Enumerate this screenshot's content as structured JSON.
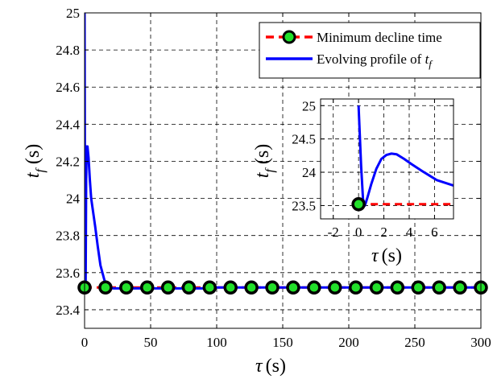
{
  "chart_data": [
    {
      "type": "line",
      "xlabel_symbol": "τ",
      "xlabel_unit": "(s)",
      "ylabel_symbol": "t",
      "ylabel_subscript": "f",
      "ylabel_unit": "(s)",
      "xlim": [
        0,
        300
      ],
      "ylim": [
        23.3,
        25
      ],
      "xticks": [
        0,
        50,
        100,
        150,
        200,
        250,
        300
      ],
      "yticks": [
        23.4,
        23.6,
        23.8,
        24,
        24.2,
        24.4,
        24.6,
        24.8,
        25
      ],
      "grid": true,
      "legend_position": "top-right",
      "legend": {
        "entry1": "Minimum decline time",
        "entry2_prefix": "Evolving profile of ",
        "entry2_symbol": "t",
        "entry2_subscript": "f"
      },
      "series": [
        {
          "name": "Minimum decline time",
          "style": "dashed",
          "color": "#ff0000",
          "marker_face": "#22e02a",
          "marker_edge": "#000000",
          "x": [
            0,
            300
          ],
          "y": [
            23.52,
            23.52
          ],
          "marker_x": [
            0,
            15.8,
            31.6,
            47.4,
            63.2,
            78.9,
            94.7,
            110.5,
            126.3,
            142.1,
            157.9,
            173.7,
            189.5,
            205.3,
            221.1,
            236.8,
            252.6,
            268.4,
            284.2,
            300
          ]
        },
        {
          "name": "Evolving profile of t_f",
          "style": "solid",
          "color": "#0000ff",
          "x": [
            0,
            0.4,
            0.8,
            1.2,
            1.6,
            2.2,
            3,
            4,
            5,
            6,
            8,
            10,
            12,
            15,
            18,
            22,
            30,
            50,
            90,
            100,
            150,
            200,
            250,
            300
          ],
          "y": [
            25,
            23.6,
            23.52,
            24.1,
            24.28,
            24.28,
            24.22,
            24.1,
            24.0,
            23.95,
            23.85,
            23.74,
            23.64,
            23.56,
            23.52,
            23.515,
            23.515,
            23.515,
            23.515,
            23.52,
            23.52,
            23.52,
            23.52,
            23.52
          ]
        }
      ]
    },
    {
      "type": "line",
      "inset": true,
      "xlabel_symbol": "τ",
      "xlabel_unit": "(s)",
      "ylabel_symbol": "t",
      "ylabel_subscript": "f",
      "ylabel_unit": "(s)",
      "xlim": [
        -3,
        7.5
      ],
      "ylim": [
        23.3,
        25.1
      ],
      "xticks": [
        -2,
        0,
        2,
        4,
        6
      ],
      "yticks": [
        23.5,
        24,
        24.5,
        25
      ],
      "grid": true,
      "series": [
        {
          "name": "Minimum decline time",
          "style": "dashed",
          "color": "#ff0000",
          "x": [
            0,
            7.5
          ],
          "y": [
            23.52,
            23.52
          ],
          "marker_x": [
            0
          ]
        },
        {
          "name": "Evolving profile of t_f",
          "style": "solid",
          "color": "#0000ff",
          "x": [
            0,
            0.2,
            0.35,
            0.5,
            0.7,
            1.0,
            1.4,
            1.8,
            2.2,
            2.6,
            3.0,
            3.6,
            4.2,
            5.0,
            5.6,
            6.2,
            7.5
          ],
          "y": [
            25,
            24.1,
            23.6,
            23.5,
            23.62,
            23.82,
            24.05,
            24.2,
            24.26,
            24.28,
            24.27,
            24.2,
            24.12,
            24.02,
            23.95,
            23.88,
            23.8
          ]
        }
      ]
    }
  ]
}
